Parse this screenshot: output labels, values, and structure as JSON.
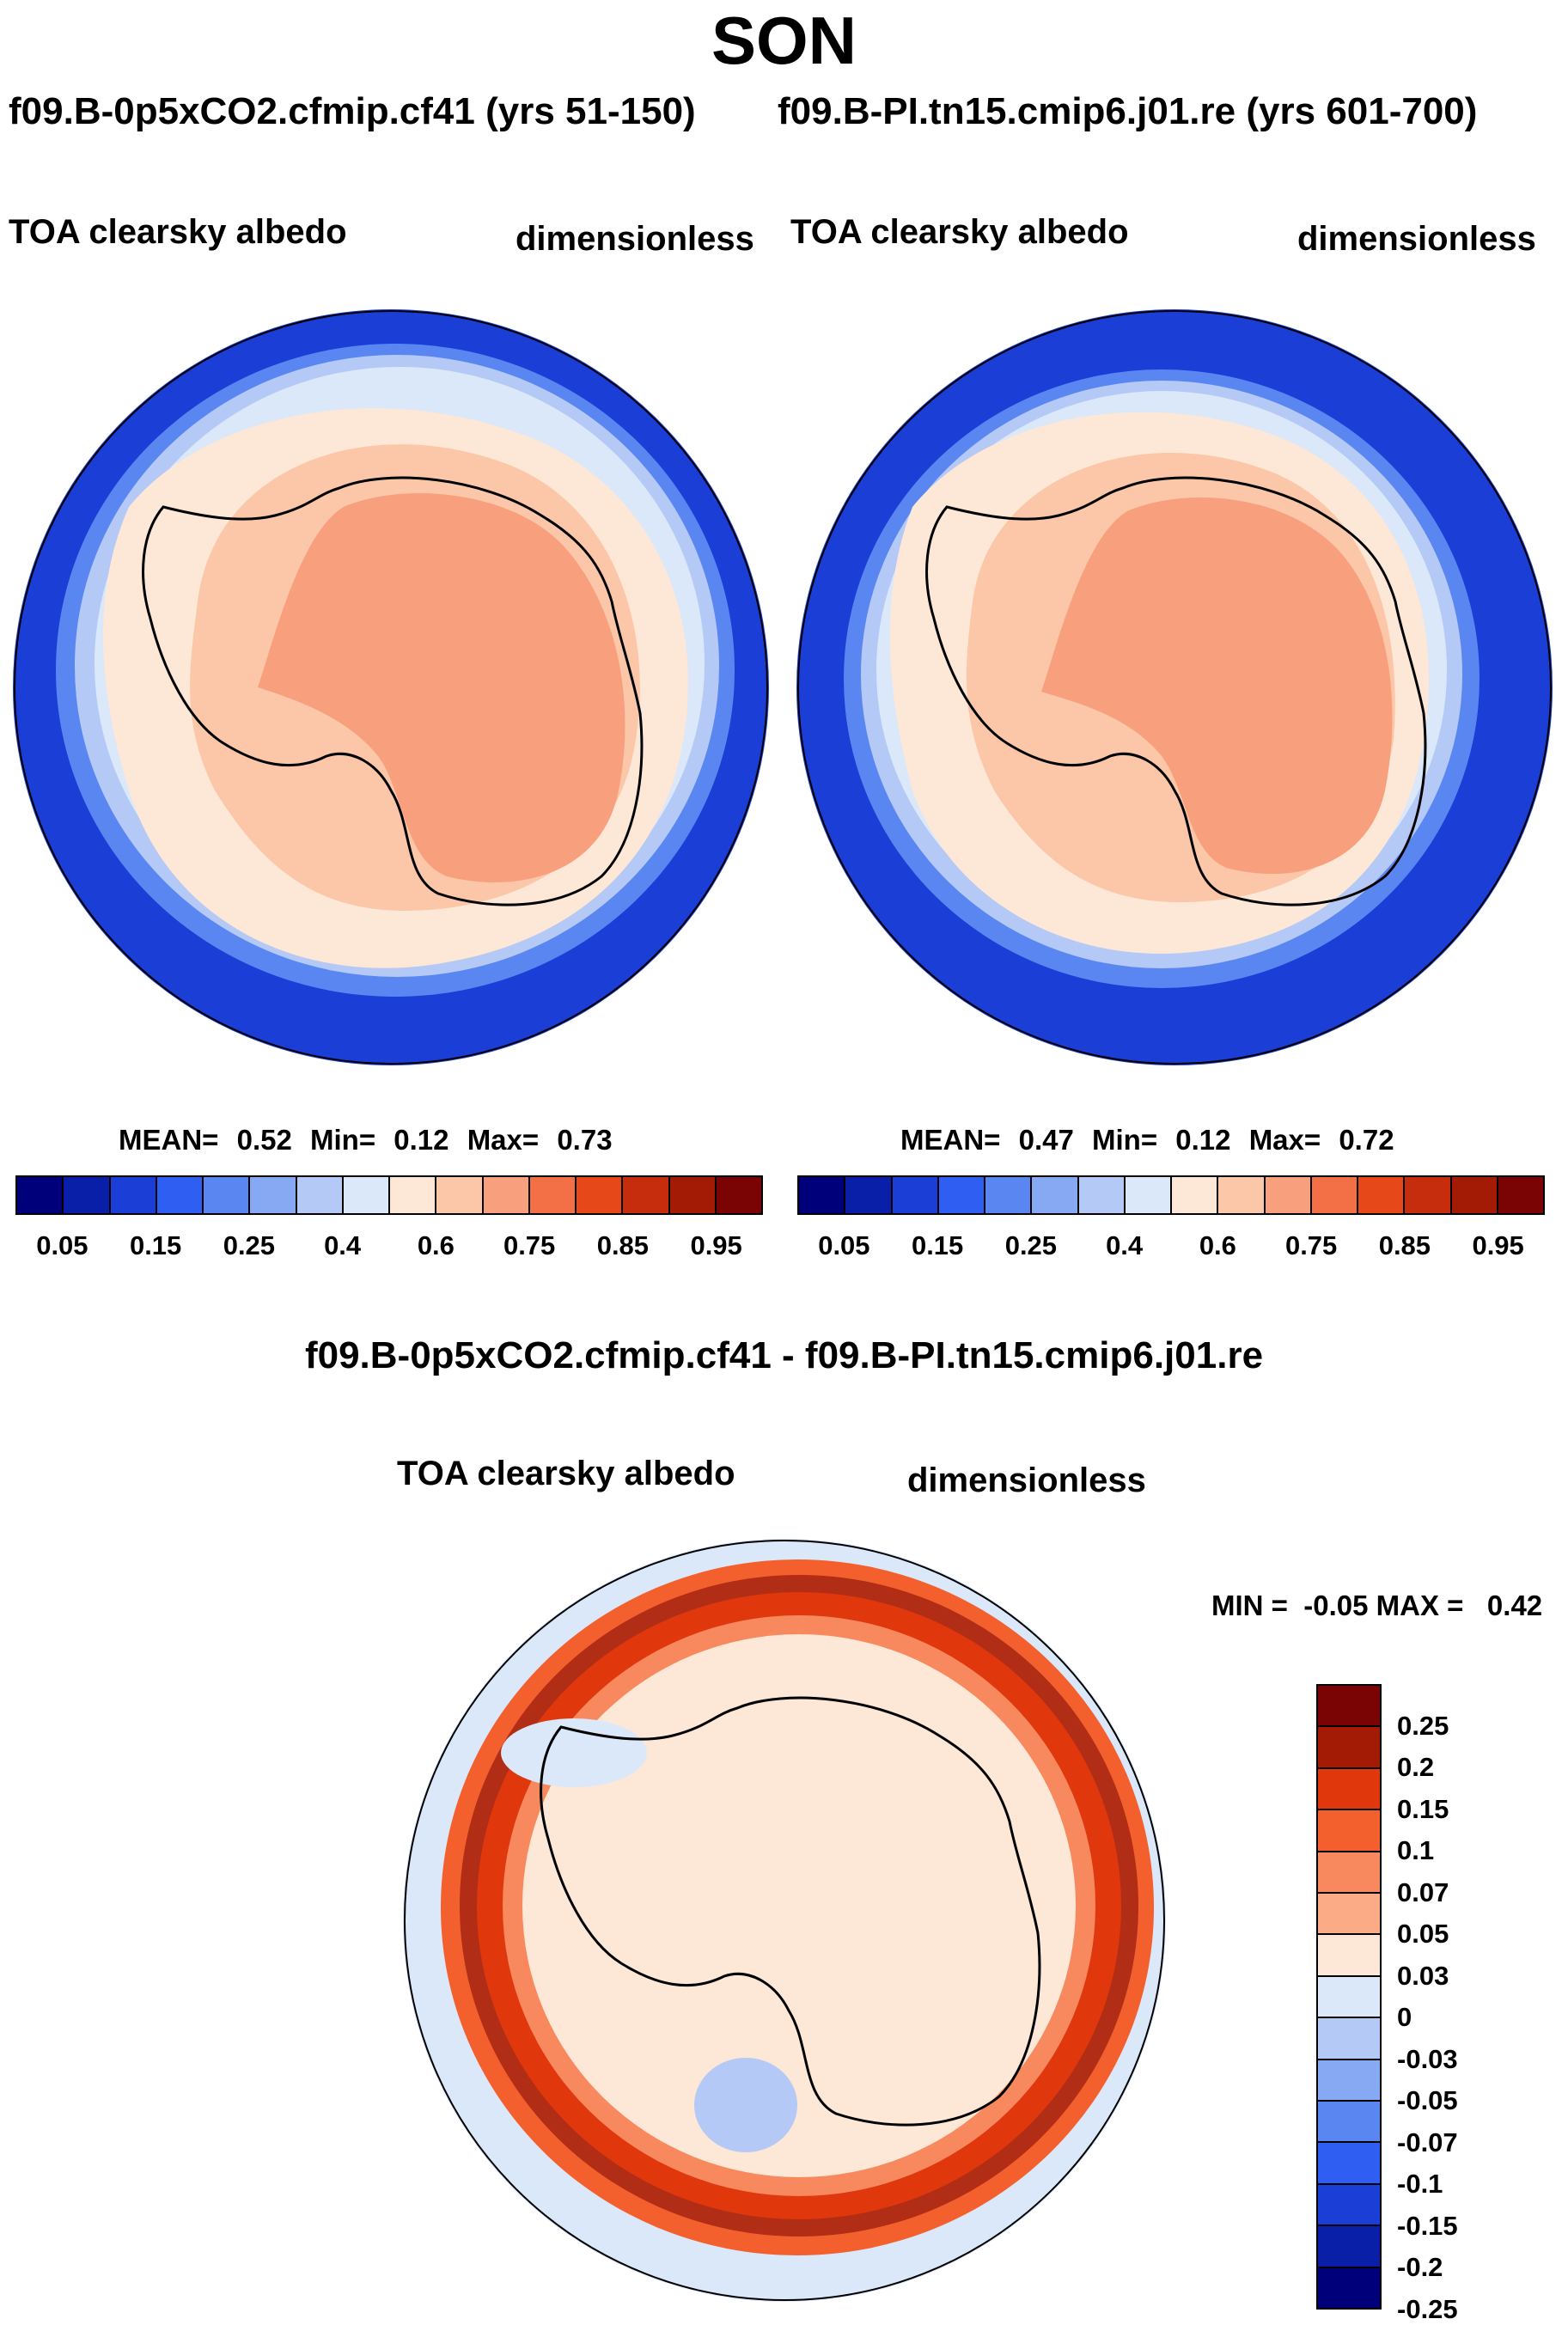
{
  "title": "SON",
  "panels": [
    {
      "run_label": "f09.B-0p5xCO2.cfmip.cf41 (yrs 51-150)",
      "variable": "TOA clearsky albedo",
      "units": "dimensionless",
      "stats": {
        "mean_label": "MEAN=",
        "mean": "0.52",
        "min_label": "Min=",
        "min": "0.12",
        "max_label": "Max=",
        "max": "0.73"
      }
    },
    {
      "run_label": "f09.B-PI.tn15.cmip6.j01.re (yrs 601-700)",
      "variable": "TOA clearsky albedo",
      "units": "dimensionless",
      "stats": {
        "mean_label": "MEAN=",
        "mean": "0.47",
        "min_label": "Min=",
        "min": "0.12",
        "max_label": "Max=",
        "max": "0.72"
      }
    }
  ],
  "difference": {
    "title": "f09.B-0p5xCO2.cfmip.cf41 - f09.B-PI.tn15.cmip6.j01.re",
    "variable": "TOA clearsky albedo",
    "units": "dimensionless",
    "stats_text": "MIN =  -0.05 MAX =   0.42"
  },
  "colorbar_abs": {
    "colors": [
      "#00007a",
      "#0a1fa8",
      "#1a3ed6",
      "#2f5ff2",
      "#5a86f2",
      "#87a8f2",
      "#b4c9f5",
      "#dae8fa",
      "#fde7d6",
      "#fbc7a8",
      "#f8a07d",
      "#f36f45",
      "#e74819",
      "#c62d0c",
      "#a31b05",
      "#7a0403"
    ],
    "ticks": [
      "0.05",
      "0.15",
      "0.25",
      "0.4",
      "0.6",
      "0.75",
      "0.85",
      "0.95"
    ]
  },
  "colorbar_diff": {
    "colors_top_to_bottom": [
      "#7a0403",
      "#a31b05",
      "#e0380c",
      "#f3602d",
      "#f8885d",
      "#fbab86",
      "#fde7d6",
      "#dae8fa",
      "#b4c9f5",
      "#87a8f2",
      "#5a86f2",
      "#2f5ff2",
      "#1a3ed6",
      "#0a1fa8",
      "#00007a"
    ],
    "ticks": [
      "0.25",
      "0.2",
      "0.15",
      "0.1",
      "0.07",
      "0.05",
      "0.03",
      "0",
      "-0.03",
      "-0.05",
      "-0.07",
      "-0.1",
      "-0.15",
      "-0.2",
      "-0.25"
    ]
  }
}
